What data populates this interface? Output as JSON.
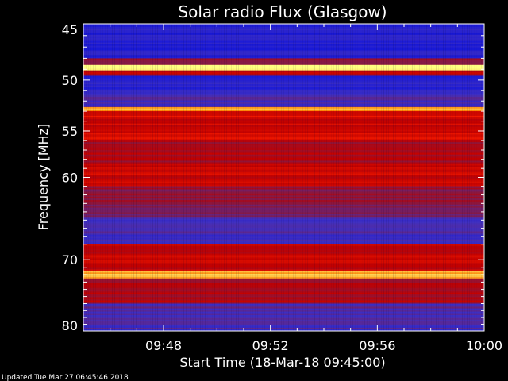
{
  "chart_data": {
    "type": "heatmap",
    "title": "Solar radio Flux (Glasgow)",
    "xlabel": "Start Time (18-Mar-18 09:45:00)",
    "ylabel": "Frequency [MHz]",
    "x_range_minutes_from_0945": [
      0,
      15
    ],
    "x_ticks": [
      {
        "label": "09:48",
        "minute": 3
      },
      {
        "label": "09:52",
        "minute": 7
      },
      {
        "label": "09:56",
        "minute": 11
      },
      {
        "label": "10:00",
        "minute": 15
      }
    ],
    "y_range_mhz": [
      45,
      80
    ],
    "y_axis_inverted": true,
    "y_scale": "log",
    "y_ticks": [
      45,
      50,
      55,
      60,
      70,
      80
    ],
    "colormap": [
      "#000080",
      "#1a1ad8",
      "#4030c0",
      "#8a1840",
      "#c00000",
      "#ff2000",
      "#ff8000",
      "#ffff80"
    ],
    "frequency_bands": [
      {
        "from": 45.0,
        "to": 48.0,
        "level": 0.18
      },
      {
        "from": 48.0,
        "to": 48.6,
        "level": 0.45
      },
      {
        "from": 48.6,
        "to": 49.1,
        "level": 1.0
      },
      {
        "from": 49.1,
        "to": 49.6,
        "level": 0.55
      },
      {
        "from": 49.6,
        "to": 51.3,
        "level": 0.2
      },
      {
        "from": 51.3,
        "to": 52.6,
        "level": 0.3
      },
      {
        "from": 52.6,
        "to": 53.0,
        "level": 0.9
      },
      {
        "from": 53.0,
        "to": 56.0,
        "level": 0.62
      },
      {
        "from": 56.0,
        "to": 58.5,
        "level": 0.52
      },
      {
        "from": 58.5,
        "to": 61.0,
        "level": 0.58
      },
      {
        "from": 61.0,
        "to": 63.5,
        "level": 0.45
      },
      {
        "from": 63.5,
        "to": 65.0,
        "level": 0.35
      },
      {
        "from": 65.0,
        "to": 68.0,
        "level": 0.28
      },
      {
        "from": 68.0,
        "to": 71.5,
        "level": 0.58
      },
      {
        "from": 71.5,
        "to": 72.5,
        "level": 0.95
      },
      {
        "from": 72.5,
        "to": 76.0,
        "level": 0.52
      },
      {
        "from": 76.0,
        "to": 80.0,
        "level": 0.3
      }
    ],
    "grid": false,
    "legend": "none"
  },
  "footer": {
    "updated": "Updated Tue Mar 27 06:45:46 2018"
  }
}
